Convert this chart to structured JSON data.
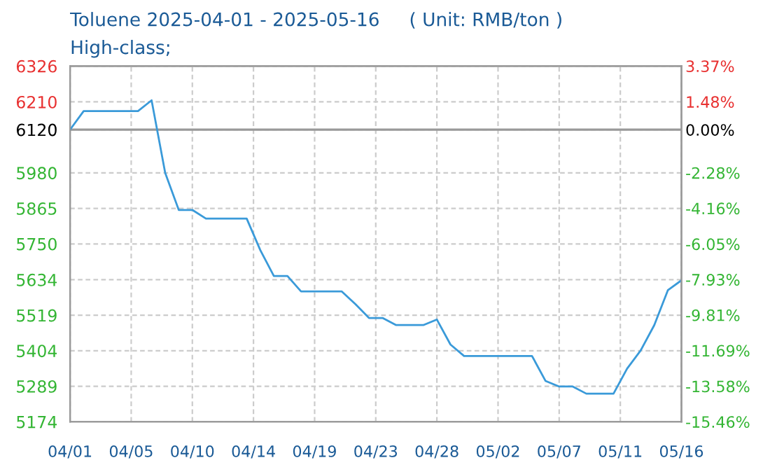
{
  "chart_data": {
    "type": "line",
    "title": "Toluene 2025-04-01 - 2025-05-16     ( Unit: RMB/ton )",
    "subtitle": "High-class;",
    "x": [
      "2025-04-01",
      "2025-04-02",
      "2025-04-06",
      "2025-04-07",
      "2025-04-08",
      "2025-04-09",
      "2025-04-10",
      "2025-04-11",
      "2025-04-14",
      "2025-04-15",
      "2025-04-16",
      "2025-04-17",
      "2025-04-18",
      "2025-04-21",
      "2025-04-22",
      "2025-04-23",
      "2025-04-24",
      "2025-04-25",
      "2025-04-27",
      "2025-04-28",
      "2025-04-29",
      "2025-04-30",
      "2025-05-05",
      "2025-05-06",
      "2025-05-07",
      "2025-05-08",
      "2025-05-09",
      "2025-05-11",
      "2025-05-12",
      "2025-05-13",
      "2025-05-14",
      "2025-05-15",
      "2025-05-16"
    ],
    "series": [
      {
        "color": "#3a9ad9",
        "values": [
          6120,
          6180,
          6180,
          6215,
          5980,
          5860,
          5860,
          5832,
          5832,
          5730,
          5646,
          5646,
          5596,
          5596,
          5555,
          5510,
          5510,
          5487,
          5487,
          5505,
          5424,
          5387,
          5387,
          5306,
          5288,
          5288,
          5265,
          5265,
          5346,
          5405,
          5487,
          5600,
          5632
        ]
      }
    ],
    "xlim": [
      "2025-04-01",
      "2025-05-16"
    ],
    "xticks": [
      {
        "value": "2025-04-01",
        "label": "04/01"
      },
      {
        "value": "2025-04-05T12:00",
        "label": "04/05"
      },
      {
        "value": "2025-04-10",
        "label": "04/10"
      },
      {
        "value": "2025-04-14T12:00",
        "label": "04/14"
      },
      {
        "value": "2025-04-19",
        "label": "04/19"
      },
      {
        "value": "2025-04-23T12:00",
        "label": "04/23"
      },
      {
        "value": "2025-04-28",
        "label": "04/28"
      },
      {
        "value": "2025-05-02T12:00",
        "label": "05/02"
      },
      {
        "value": "2025-05-07",
        "label": "05/07"
      },
      {
        "value": "2025-05-11T12:00",
        "label": "05/11"
      },
      {
        "value": "2025-05-16",
        "label": "05/16"
      }
    ],
    "ylim": [
      5174,
      6326
    ],
    "yticks": [
      5174,
      5289,
      5404,
      5519,
      5634,
      5750,
      5865,
      5980,
      6120,
      6210,
      6326
    ],
    "y2lim": [
      -15.46,
      3.37
    ],
    "y2ticks": [
      {
        "value": -15.46,
        "label": "-15.46%"
      },
      {
        "value": -13.58,
        "label": "-13.58%"
      },
      {
        "value": -11.69,
        "label": "-11.69%"
      },
      {
        "value": -9.81,
        "label": "-9.81%"
      },
      {
        "value": -7.93,
        "label": "-7.93%"
      },
      {
        "value": -6.05,
        "label": "-6.05%"
      },
      {
        "value": -4.16,
        "label": "-4.16%"
      },
      {
        "value": -2.28,
        "label": "-2.28%"
      },
      {
        "value": 0,
        "label": "0.00%"
      },
      {
        "value": 1.48,
        "label": "1.48%"
      },
      {
        "value": 3.37,
        "label": "3.37%"
      }
    ],
    "ref_lines": [
      {
        "axis": "y",
        "value": 6120,
        "color": "#999999"
      }
    ],
    "grid": true,
    "marker": "none",
    "line_style": "solid",
    "legend": false
  }
}
